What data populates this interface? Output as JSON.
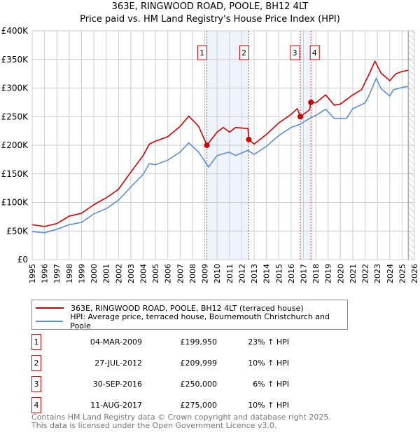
{
  "chart_data": {
    "type": "line",
    "title": "363E, RINGWOOD ROAD, POOLE, BH12 4LT",
    "subtitle": "Price paid vs. HM Land Registry's House Price Index (HPI)",
    "xlim": [
      1995,
      2026
    ],
    "ylim": [
      0,
      400000
    ],
    "y_ticks": [
      {
        "v": 0,
        "label": "£0"
      },
      {
        "v": 50000,
        "label": "£50K"
      },
      {
        "v": 100000,
        "label": "£100K"
      },
      {
        "v": 150000,
        "label": "£150K"
      },
      {
        "v": 200000,
        "label": "£200K"
      },
      {
        "v": 250000,
        "label": "£250K"
      },
      {
        "v": 300000,
        "label": "£300K"
      },
      {
        "v": 350000,
        "label": "£350K"
      },
      {
        "v": 400000,
        "label": "£400K"
      }
    ],
    "x_ticks": [
      "1995",
      "1996",
      "1997",
      "1998",
      "1999",
      "2000",
      "2001",
      "2002",
      "2003",
      "2004",
      "2005",
      "2006",
      "2007",
      "2008",
      "2009",
      "2010",
      "2011",
      "2012",
      "2013",
      "2014",
      "2015",
      "2016",
      "2017",
      "2018",
      "2019",
      "2020",
      "2021",
      "2022",
      "2023",
      "2024",
      "2025",
      "2026"
    ],
    "grid": true,
    "series": [
      {
        "name": "363E, RINGWOOD ROAD, POOLE, BH12 4LT (terraced house)",
        "color": "#cc0000",
        "x": [
          1995,
          1996,
          1997,
          1998,
          1999,
          2000,
          2001,
          2002,
          2003,
          2004,
          2004.5,
          2005,
          2006,
          2007,
          2007.7,
          2008.5,
          2009.17,
          2010,
          2010.5,
          2011,
          2011.5,
          2012.5,
          2012.57,
          2013,
          2014,
          2015,
          2016,
          2016.5,
          2016.75,
          2017.5,
          2017.6,
          2018,
          2018.8,
          2019.5,
          2020,
          2021,
          2021.7,
          2022.3,
          2022.8,
          2023.3,
          2024,
          2024.5,
          2025,
          2025.5
        ],
        "y": [
          61,
          58,
          63,
          76,
          81,
          96,
          108,
          123,
          153,
          182,
          202,
          207,
          215,
          233,
          251,
          233,
          200,
          223,
          231,
          223,
          231,
          229,
          210,
          202,
          219,
          239,
          254,
          264,
          250,
          262,
          275,
          274,
          288,
          270,
          272,
          288,
          297,
          323,
          347,
          326,
          313,
          325,
          329,
          331
        ]
      },
      {
        "name": "HPI: Average price, terraced house, Bournemouth Christchurch and Poole",
        "color": "#5b8fd4",
        "x": [
          1995,
          1996,
          1997,
          1998,
          1999,
          2000,
          2001,
          2002,
          2003,
          2004,
          2004.5,
          2005,
          2006,
          2007,
          2007.7,
          2008.5,
          2009.3,
          2010,
          2011,
          2011.5,
          2012.5,
          2013,
          2014,
          2015,
          2016,
          2016.75,
          2017.5,
          2018,
          2018.8,
          2019.5,
          2020.5,
          2021,
          2022,
          2022.3,
          2022.9,
          2023.3,
          2024,
          2024.3,
          2025,
          2025.5
        ],
        "y": [
          49,
          47,
          53,
          61,
          65,
          80,
          89,
          104,
          127,
          149,
          168,
          166,
          174,
          188,
          204,
          188,
          162,
          182,
          188,
          182,
          191,
          184,
          198,
          217,
          231,
          237,
          247,
          252,
          263,
          247,
          247,
          264,
          274,
          286,
          317,
          299,
          286,
          297,
          301,
          303
        ]
      }
    ],
    "y_unit": "thousand GBP",
    "shaded_ranges": [
      [
        2009.17,
        2012.57
      ],
      [
        2016.75,
        2017.61
      ]
    ],
    "forecast_hatch_from": 2025.5,
    "sales": [
      {
        "n": "1",
        "x": 2009.17,
        "y": 199950,
        "date": "04-MAR-2009",
        "price": "£199,950",
        "hpi": "23% ↑ HPI"
      },
      {
        "n": "2",
        "x": 2012.57,
        "y": 209999,
        "date": "27-JUL-2012",
        "price": "£209,999",
        "hpi": "10% ↑ HPI"
      },
      {
        "n": "3",
        "x": 2016.75,
        "y": 250000,
        "date": "30-SEP-2016",
        "price": "£250,000",
        "hpi": "6% ↑ HPI"
      },
      {
        "n": "4",
        "x": 2017.61,
        "y": 275000,
        "date": "11-AUG-2017",
        "price": "£275,000",
        "hpi": "10% ↑ HPI"
      }
    ],
    "legend_position": "bottom"
  },
  "footer": {
    "line1": "Contains HM Land Registry data © Crown copyright and database right 2025.",
    "line2": "This data is licensed under the Open Government Licence v3.0."
  }
}
